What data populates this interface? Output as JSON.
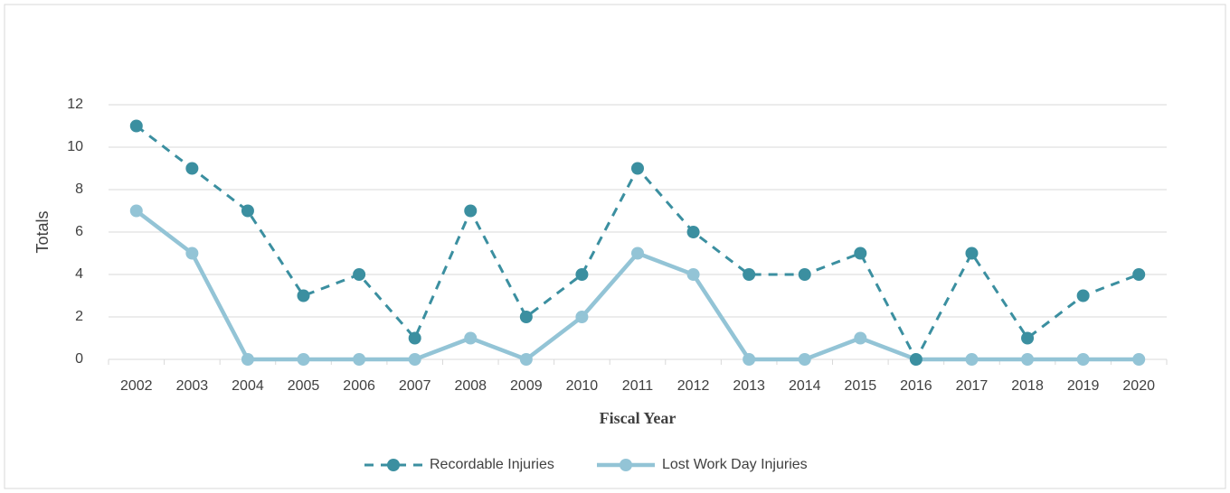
{
  "chart_data": {
    "type": "line",
    "y_label": "Totals",
    "x_label": "Fiscal Year",
    "categories": [
      "2002",
      "2003",
      "2004",
      "2005",
      "2006",
      "2007",
      "2008",
      "2009",
      "2010",
      "2011",
      "2012",
      "2013",
      "2014",
      "2015",
      "2016",
      "2017",
      "2018",
      "2019",
      "2020"
    ],
    "series": [
      {
        "name": "Recordable Injuries",
        "color": "#3b8fa0",
        "dashed": true,
        "values": [
          11,
          9,
          7,
          3,
          4,
          1,
          7,
          2,
          4,
          9,
          6,
          4,
          4,
          5,
          0,
          5,
          1,
          3,
          4
        ]
      },
      {
        "name": "Lost Work Day Injuries",
        "color": "#93c4d6",
        "dashed": false,
        "values": [
          7,
          5,
          0,
          0,
          0,
          0,
          1,
          0,
          2,
          5,
          4,
          0,
          0,
          1,
          0,
          0,
          0,
          0,
          0
        ]
      }
    ],
    "ylim": [
      0,
      12
    ],
    "yticks": [
      0,
      2,
      4,
      6,
      8,
      10,
      12
    ],
    "grid": true
  }
}
